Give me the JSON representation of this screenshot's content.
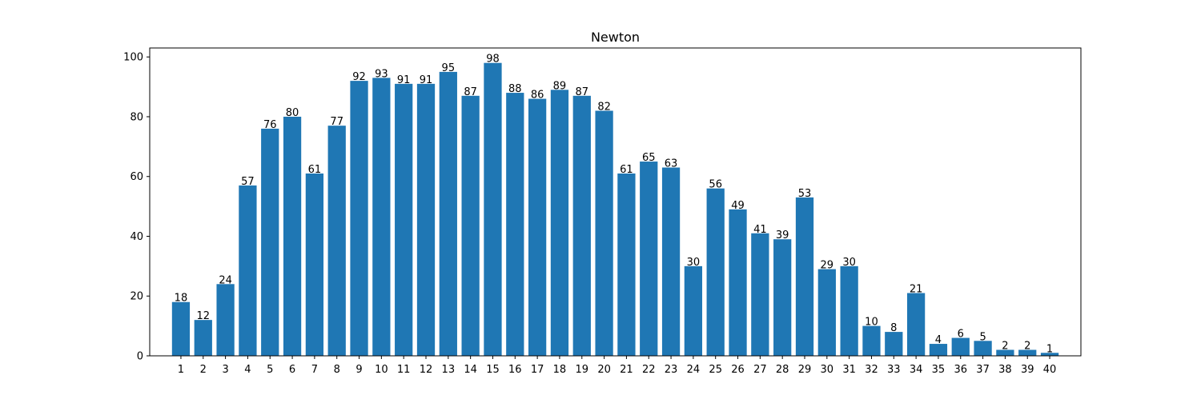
{
  "chart_data": {
    "type": "bar",
    "title": "Newton",
    "xlabel": "",
    "ylabel": "",
    "categories": [
      "1",
      "2",
      "3",
      "4",
      "5",
      "6",
      "7",
      "8",
      "9",
      "10",
      "11",
      "12",
      "13",
      "14",
      "15",
      "16",
      "17",
      "18",
      "19",
      "20",
      "21",
      "22",
      "23",
      "24",
      "25",
      "26",
      "27",
      "28",
      "29",
      "30",
      "31",
      "32",
      "33",
      "34",
      "35",
      "36",
      "37",
      "38",
      "39",
      "40"
    ],
    "values": [
      18,
      12,
      24,
      57,
      76,
      80,
      61,
      77,
      92,
      93,
      91,
      91,
      95,
      87,
      98,
      88,
      86,
      89,
      87,
      82,
      61,
      65,
      63,
      30,
      56,
      49,
      41,
      39,
      53,
      29,
      30,
      10,
      8,
      21,
      4,
      6,
      5,
      2,
      2,
      1
    ],
    "ylim": [
      0,
      103
    ],
    "yticks": [
      0,
      20,
      40,
      60,
      80,
      100
    ],
    "grid": false,
    "bar_color": "#1f77b4",
    "show_data_labels": true
  }
}
